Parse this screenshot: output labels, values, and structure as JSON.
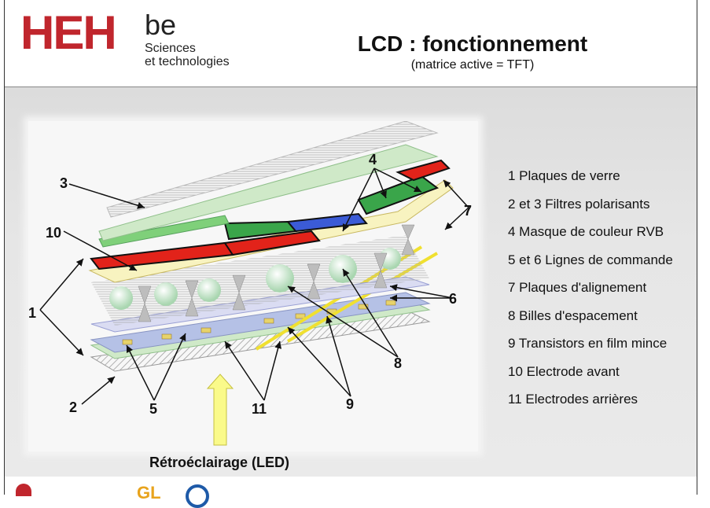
{
  "header": {
    "logo_main": "HEH",
    "logo_suffix": "be",
    "logo_tagline": "Sciences\net technologies",
    "title": "LCD : fonctionnement",
    "subtitle": "(matrice active = TFT)"
  },
  "diagram": {
    "labels": [
      "1",
      "2",
      "3",
      "4",
      "5",
      "6",
      "7",
      "8",
      "9",
      "10",
      "11"
    ]
  },
  "legend": [
    "1 Plaques de verre",
    "2 et 3 Filtres polarisants",
    "4 Masque de couleur RVB",
    "5 et 6 Lignes de commande",
    "7 Plaques d'alignement",
    "8 Billes d'espacement",
    "9 Transistors en film mince",
    "10 Electrode avant",
    "11 Electrodes arrières"
  ],
  "caption": "Rétroéclairage (LED)",
  "footer": {
    "text_small": "",
    "page": ""
  },
  "colors": {
    "brand_red": "#c0262d",
    "filter_red": "#e2231a",
    "filter_green": "#3aa54a",
    "filter_blue": "#3b5bd6",
    "alignment": "#f8f3c0",
    "glass": "#cfe9c8",
    "arrow_yellow": "#fafa8a"
  }
}
